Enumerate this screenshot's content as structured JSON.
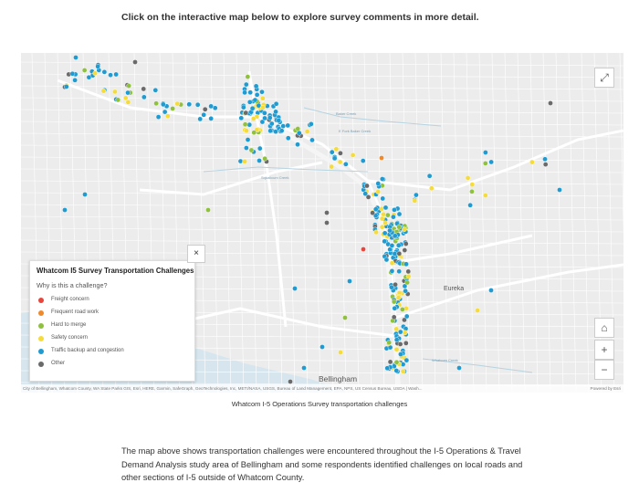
{
  "intro_text": "Click on the interactive map below to explore survey comments in more detail.",
  "map": {
    "place_labels": {
      "eureka": "Eureka",
      "bellingham": "Bellingham",
      "baker_creek": "Baker Creek",
      "e_fork_baker_creek": "E Fork Baker Creek",
      "squalicum_creek": "Squalicum Creek",
      "whatcom_creek": "Whatcom Creek"
    },
    "legend": {
      "title": "Whatcom I5 Survey Transportation Challenges",
      "subtitle": "Why is this a challenge?",
      "items": [
        {
          "label": "Freight concern",
          "color": "#e8463c"
        },
        {
          "label": "Frequent road work",
          "color": "#f0892b"
        },
        {
          "label": "Hard to merge",
          "color": "#8fc13e"
        },
        {
          "label": "Safety concern",
          "color": "#f5dc3a"
        },
        {
          "label": "Traffic backup and congestion",
          "color": "#1f9bd1"
        },
        {
          "label": "Other",
          "color": "#6a6a6a"
        }
      ],
      "close_symbol": "×"
    },
    "controls": {
      "expand_symbol": "⤢",
      "home_symbol": "⌂",
      "zoom_in_symbol": "+",
      "zoom_out_symbol": "−"
    },
    "attribution_left": "City of Bellingham, Whatcom County, WA State Parks GIS, Esri, HERE, Garmin, SafeGraph, GeoTechnologies, Inc, METI/NASA, USGS, Bureau of Land Management, EPA, NPS, US Census Bureau, USDA | Wash...",
    "attribution_right": "Powered by Esri"
  },
  "caption": "Whatcom I-5 Operations Survey transportation challenges",
  "body_text": "The map above shows transportation challenges were encountered throughout the I-5 Operations & Travel Demand Analysis study area of Bellingham and some respondents identified challenges on local roads and other sections of I-5 outside of Whatcom County."
}
